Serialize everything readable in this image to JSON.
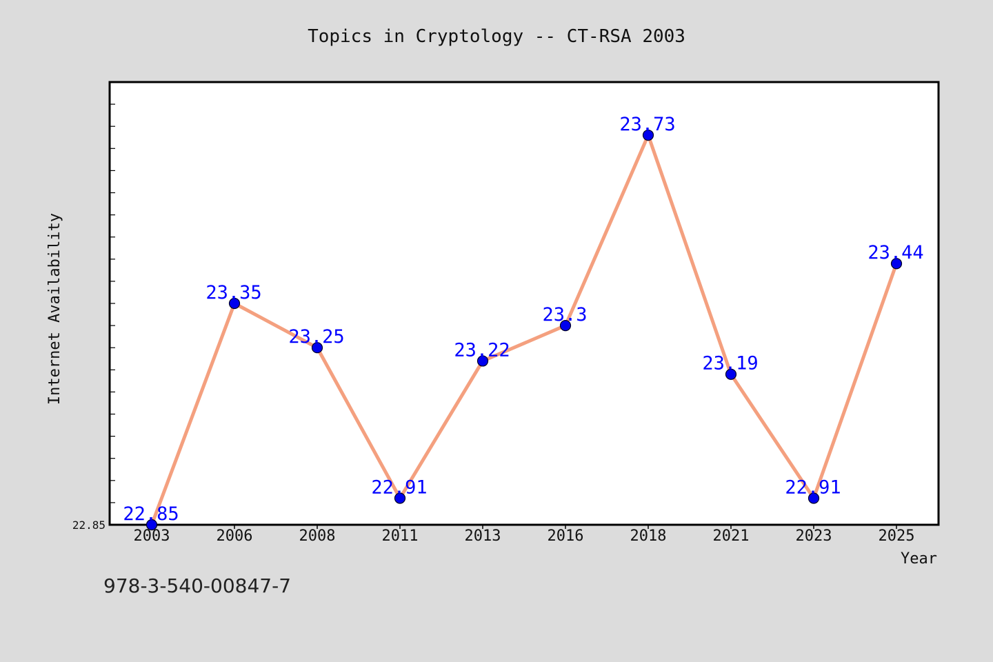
{
  "chart_data": {
    "type": "line",
    "title": "Topics in Cryptology -- CT-RSA 2003",
    "xlabel": "Year",
    "ylabel": "Internet Availability",
    "categories": [
      "2003",
      "2006",
      "2008",
      "2011",
      "2013",
      "2016",
      "2018",
      "2021",
      "2023",
      "2025"
    ],
    "series": [
      {
        "values": [
          22.85,
          23.35,
          23.25,
          22.91,
          23.22,
          23.3,
          23.73,
          23.19,
          22.91,
          23.44
        ],
        "labels": [
          "22.85",
          "23.35",
          "23.25",
          "22.91",
          "23.22",
          "23.3",
          "23.73",
          "23.19",
          "22.91",
          "23.44"
        ]
      }
    ],
    "y_tick_label": "22.85",
    "ylim": [
      22.85,
      23.85
    ],
    "grid": false,
    "colors": {
      "line": "#f4a07f",
      "marker": "#0000ee",
      "label": "#0000ff",
      "background": "#dcdcdc",
      "plot_area": "#ffffff"
    }
  },
  "footnote": "978-3-540-00847-7"
}
